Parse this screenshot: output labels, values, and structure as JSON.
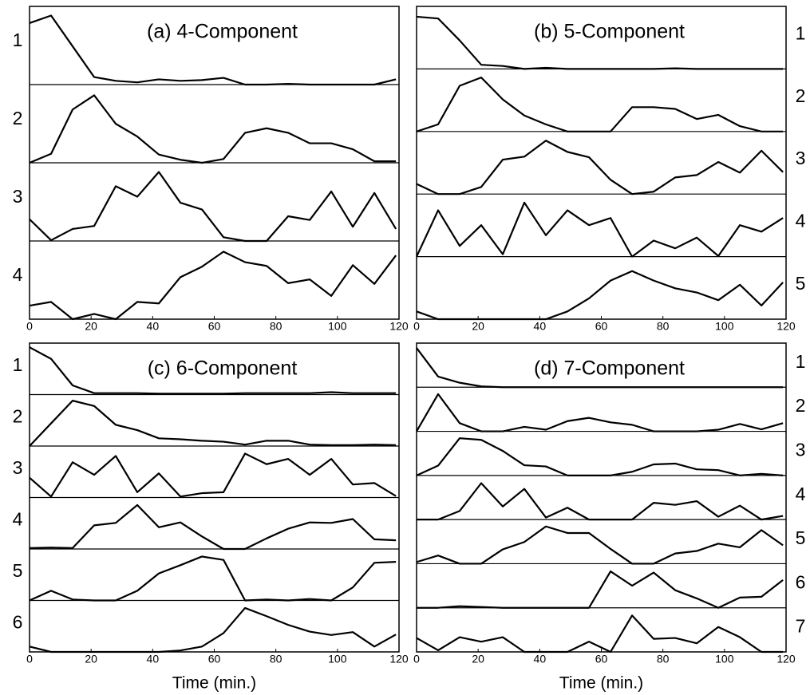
{
  "chart_data": [
    {
      "type": "line",
      "title": "(a) 4-Component",
      "label_side": "left",
      "color": "#000000",
      "x": [
        0,
        7,
        14,
        21,
        28,
        35,
        42,
        49,
        56,
        63,
        70,
        77,
        84,
        91,
        98,
        105,
        112,
        119
      ],
      "xlim": [
        0,
        120
      ],
      "xticks": [
        0,
        20,
        40,
        60,
        80,
        100,
        120
      ],
      "ylim": [
        0,
        1
      ],
      "series": [
        {
          "name": "1",
          "values": [
            0.82,
            0.92,
            0.51,
            0.1,
            0.05,
            0.03,
            0.07,
            0.05,
            0.06,
            0.09,
            0,
            0,
            0.01,
            0,
            0,
            0,
            0,
            0.07
          ]
        },
        {
          "name": "2",
          "values": [
            0,
            0.12,
            0.71,
            0.9,
            0.52,
            0.35,
            0.11,
            0.04,
            0,
            0.05,
            0.4,
            0.46,
            0.4,
            0.26,
            0.26,
            0.18,
            0.02,
            0.02
          ]
        },
        {
          "name": "3",
          "values": [
            0.29,
            0.01,
            0.16,
            0.2,
            0.73,
            0.59,
            0.92,
            0.51,
            0.42,
            0.05,
            0,
            0,
            0.33,
            0.28,
            0.66,
            0.19,
            0.64,
            0.16
          ]
        },
        {
          "name": "4",
          "values": [
            0.18,
            0.23,
            0,
            0.07,
            0,
            0.23,
            0.21,
            0.56,
            0.7,
            0.9,
            0.76,
            0.71,
            0.48,
            0.53,
            0.31,
            0.72,
            0.47,
            0.85
          ]
        }
      ]
    },
    {
      "type": "line",
      "title": "(b) 5-Component",
      "label_side": "right",
      "color": "#000000",
      "x": [
        0,
        7,
        14,
        21,
        28,
        35,
        42,
        49,
        56,
        63,
        70,
        77,
        84,
        91,
        98,
        105,
        112,
        119
      ],
      "xlim": [
        0,
        120
      ],
      "xticks": [
        0,
        20,
        40,
        60,
        80,
        100,
        120
      ],
      "ylim": [
        0,
        1
      ],
      "series": [
        {
          "name": "1",
          "values": [
            0.88,
            0.85,
            0.48,
            0.07,
            0.05,
            0,
            0.02,
            0,
            0,
            0,
            0,
            0,
            0.01,
            0,
            0,
            0,
            0,
            0
          ]
        },
        {
          "name": "2",
          "values": [
            0,
            0.12,
            0.77,
            0.91,
            0.54,
            0.27,
            0.12,
            0,
            0,
            0,
            0.41,
            0.41,
            0.38,
            0.21,
            0.28,
            0.09,
            0,
            0
          ]
        },
        {
          "name": "3",
          "values": [
            0.17,
            0,
            0,
            0.12,
            0.58,
            0.63,
            0.9,
            0.71,
            0.62,
            0.24,
            0,
            0.04,
            0.28,
            0.32,
            0.54,
            0.36,
            0.73,
            0.37
          ]
        },
        {
          "name": "4",
          "values": [
            0,
            0.78,
            0.18,
            0.53,
            0.04,
            0.91,
            0.36,
            0.78,
            0.53,
            0.65,
            0,
            0.27,
            0.14,
            0.32,
            0.01,
            0.53,
            0.42,
            0.65
          ]
        },
        {
          "name": "5",
          "values": [
            0.13,
            0,
            0,
            0,
            0,
            0,
            0,
            0.13,
            0.35,
            0.65,
            0.81,
            0.65,
            0.52,
            0.45,
            0.32,
            0.58,
            0.23,
            0.62
          ]
        }
      ]
    },
    {
      "type": "line",
      "title": "(c) 6-Component",
      "label_side": "left",
      "color": "#000000",
      "xlabel": "Time (min.)",
      "x": [
        0,
        7,
        14,
        21,
        28,
        35,
        42,
        49,
        56,
        63,
        70,
        77,
        84,
        91,
        98,
        105,
        112,
        119
      ],
      "xlim": [
        0,
        120
      ],
      "xticks": [
        0,
        20,
        40,
        60,
        80,
        100,
        120
      ],
      "ylim": [
        0,
        1
      ],
      "series": [
        {
          "name": "1",
          "values": [
            0.98,
            0.74,
            0.19,
            0.03,
            0.03,
            0.03,
            0.02,
            0.02,
            0.02,
            0.02,
            0.03,
            0.03,
            0.03,
            0.03,
            0.05,
            0.03,
            0.03,
            0.03
          ]
        },
        {
          "name": "2",
          "values": [
            0,
            0.47,
            0.94,
            0.83,
            0.44,
            0.33,
            0.16,
            0.14,
            0.11,
            0.09,
            0.03,
            0.11,
            0.11,
            0.03,
            0.02,
            0.02,
            0.03,
            0.02
          ]
        },
        {
          "name": "3",
          "values": [
            0.41,
            0.02,
            0.73,
            0.47,
            0.86,
            0.11,
            0.5,
            0.02,
            0.09,
            0.11,
            0.91,
            0.69,
            0.8,
            0.47,
            0.8,
            0.27,
            0.3,
            0.03
          ]
        },
        {
          "name": "4",
          "values": [
            0.02,
            0.03,
            0.02,
            0.49,
            0.54,
            0.91,
            0.45,
            0.55,
            0.26,
            0,
            0,
            0.22,
            0.42,
            0.55,
            0.54,
            0.62,
            0.2,
            0.18
          ]
        },
        {
          "name": "5",
          "values": [
            0,
            0.2,
            0.02,
            0,
            0,
            0.2,
            0.56,
            0.73,
            0.91,
            0.84,
            0,
            0.02,
            0,
            0.03,
            0,
            0.27,
            0.78,
            0.8
          ]
        },
        {
          "name": "6",
          "values": [
            0.11,
            0,
            0,
            0,
            0,
            0,
            0,
            0.03,
            0.11,
            0.39,
            0.91,
            0.74,
            0.56,
            0.42,
            0.35,
            0.41,
            0.11,
            0.36
          ]
        }
      ]
    },
    {
      "type": "line",
      "title": "(d) 7-Component",
      "label_side": "right",
      "color": "#000000",
      "xlabel": "Time (min.)",
      "x": [
        0,
        7,
        14,
        21,
        28,
        35,
        42,
        49,
        56,
        63,
        70,
        77,
        84,
        91,
        98,
        105,
        112,
        119
      ],
      "xlim": [
        0,
        120
      ],
      "xticks": [
        0,
        20,
        40,
        60,
        80,
        100,
        120
      ],
      "ylim": [
        0,
        1
      ],
      "series": [
        {
          "name": "1",
          "values": [
            0.96,
            0.26,
            0.11,
            0.02,
            0,
            0,
            0,
            0,
            0,
            0,
            0,
            0,
            0,
            0,
            0,
            0,
            0,
            0
          ]
        },
        {
          "name": "2",
          "values": [
            0,
            0.91,
            0.2,
            0,
            0,
            0.11,
            0.04,
            0.25,
            0.33,
            0.22,
            0.16,
            0,
            0,
            0,
            0.04,
            0.18,
            0.05,
            0.2
          ]
        },
        {
          "name": "3",
          "values": [
            0,
            0.24,
            0.91,
            0.87,
            0.6,
            0.25,
            0.22,
            0,
            0,
            0,
            0.09,
            0.27,
            0.29,
            0.15,
            0.13,
            0,
            0.04,
            0
          ]
        },
        {
          "name": "4",
          "values": [
            0,
            0,
            0.21,
            0.89,
            0.32,
            0.75,
            0.05,
            0.29,
            0,
            0,
            0,
            0.41,
            0.36,
            0.45,
            0.07,
            0.34,
            0,
            0.09
          ]
        },
        {
          "name": "5",
          "values": [
            0.04,
            0.2,
            0,
            0,
            0.35,
            0.53,
            0.91,
            0.75,
            0.75,
            0.36,
            0,
            0,
            0.25,
            0.31,
            0.49,
            0.4,
            0.82,
            0.45
          ]
        },
        {
          "name": "6",
          "values": [
            0,
            0,
            0.04,
            0.02,
            0,
            0,
            0,
            0,
            0,
            0.89,
            0.54,
            0.86,
            0.43,
            0.23,
            0,
            0.25,
            0.27,
            0.68
          ]
        },
        {
          "name": "7",
          "values": [
            0.34,
            0.04,
            0.36,
            0.25,
            0.36,
            0,
            0,
            0,
            0.25,
            0,
            0.89,
            0.32,
            0.34,
            0.21,
            0.61,
            0.36,
            0,
            0
          ]
        }
      ]
    }
  ]
}
